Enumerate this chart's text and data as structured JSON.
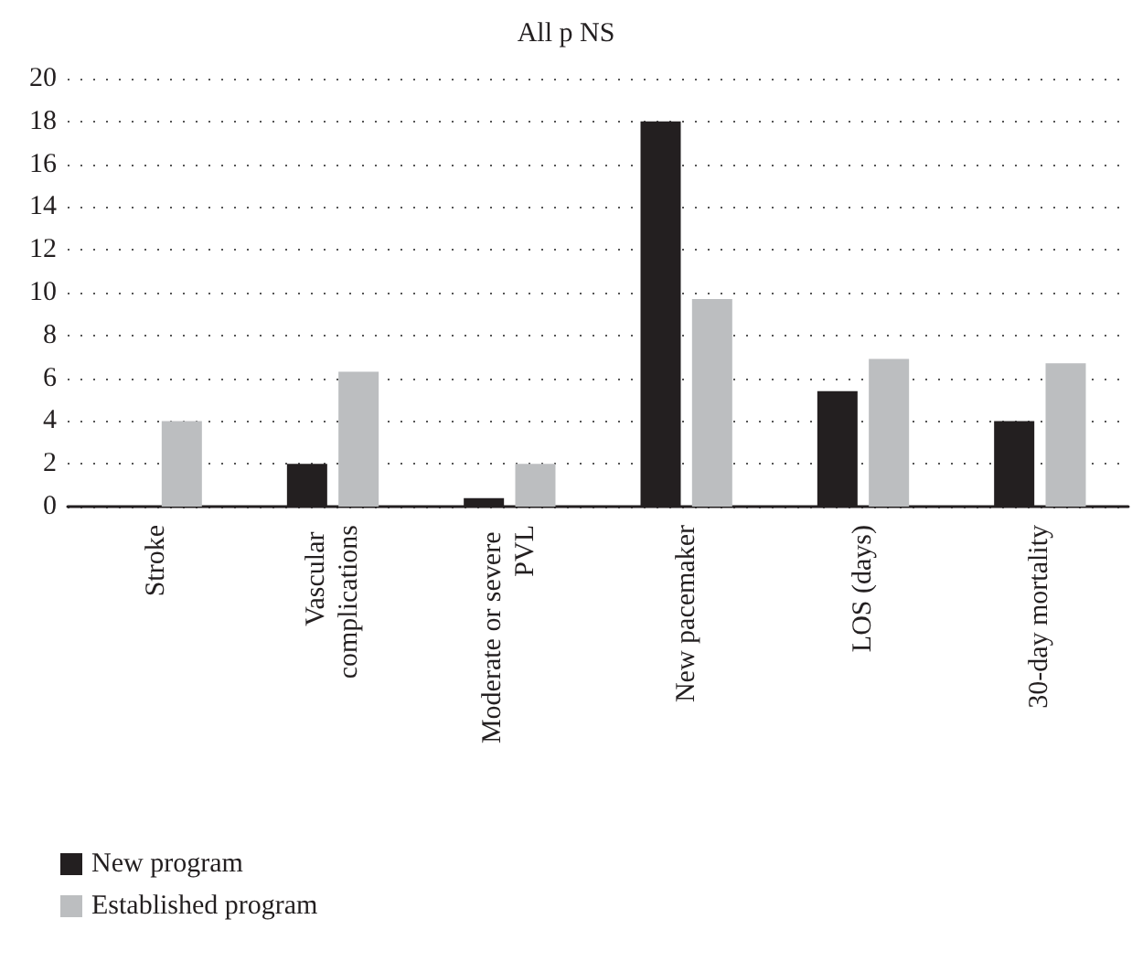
{
  "chart_data": {
    "type": "bar",
    "title": "All p NS",
    "categories": [
      "Stroke",
      "Vascular complications",
      "Moderate or severe PVL",
      "New pacemaker",
      "LOS (days)",
      "30-day mortality"
    ],
    "series": [
      {
        "name": "New program",
        "color": "#231f20",
        "values": [
          0,
          2,
          0.4,
          18,
          5.4,
          4
        ]
      },
      {
        "name": "Established program",
        "color": "#bcbec0",
        "values": [
          4,
          6.3,
          2,
          9.7,
          6.9,
          6.7
        ]
      }
    ],
    "ylim": [
      0,
      20
    ],
    "yticks": [
      0,
      2,
      4,
      6,
      8,
      10,
      12,
      14,
      16,
      18,
      20
    ],
    "grid": "y",
    "legend": "bottom left"
  }
}
